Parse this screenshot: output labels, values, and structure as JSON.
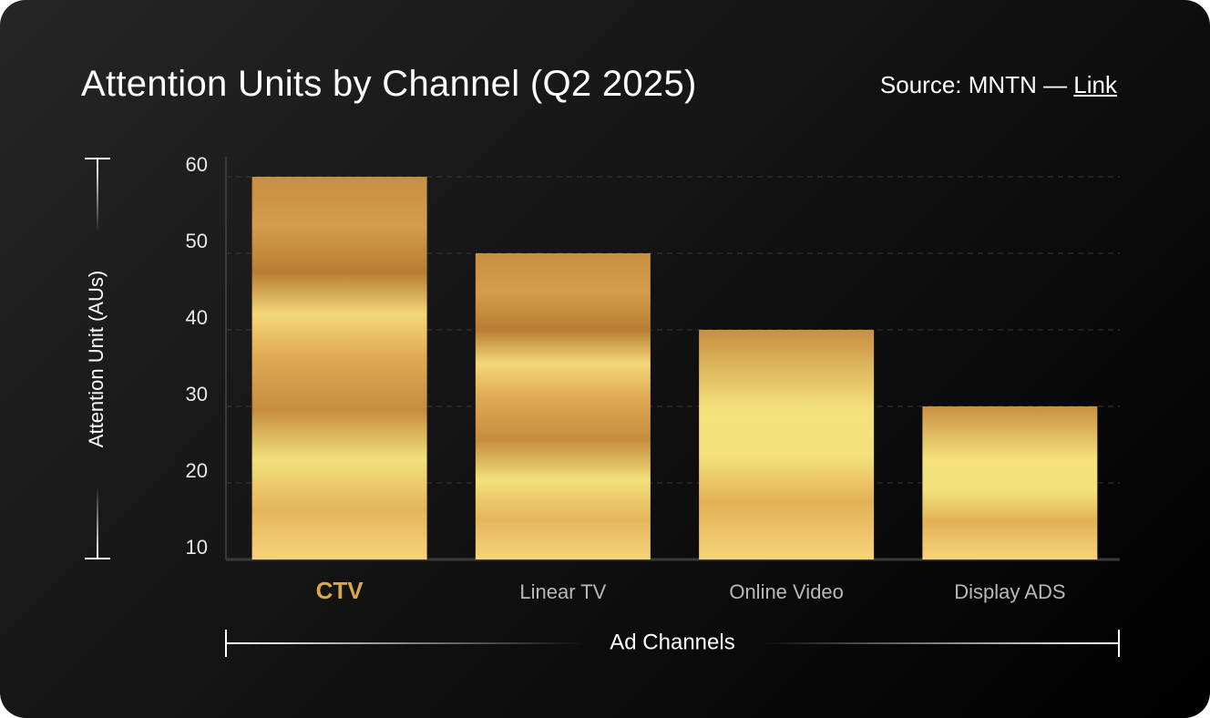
{
  "header": {
    "title": "Attention Units by Channel (Q2 2025)",
    "source_prefix": "Source: MNTN — ",
    "source_link": "Link"
  },
  "chart_data": {
    "type": "bar",
    "title": "Attention Units by Channel (Q2 2025)",
    "xlabel": "Ad Channels",
    "ylabel": "Attention Unit (AUs)",
    "categories": [
      "CTV",
      "Linear TV",
      "Online Video",
      "Display ADS"
    ],
    "values": [
      60,
      50,
      40,
      30
    ],
    "yticks": [
      10,
      20,
      30,
      40,
      50,
      60
    ],
    "ylim": [
      10,
      60
    ],
    "grid": true,
    "highlight_category": "CTV",
    "colors": {
      "bar_light": "#f4e27d",
      "bar_mid": "#e0ab55",
      "bar_dark": "#b87d33",
      "highlight_label": "#d9a74a",
      "axis": "#3a3a3a"
    }
  }
}
